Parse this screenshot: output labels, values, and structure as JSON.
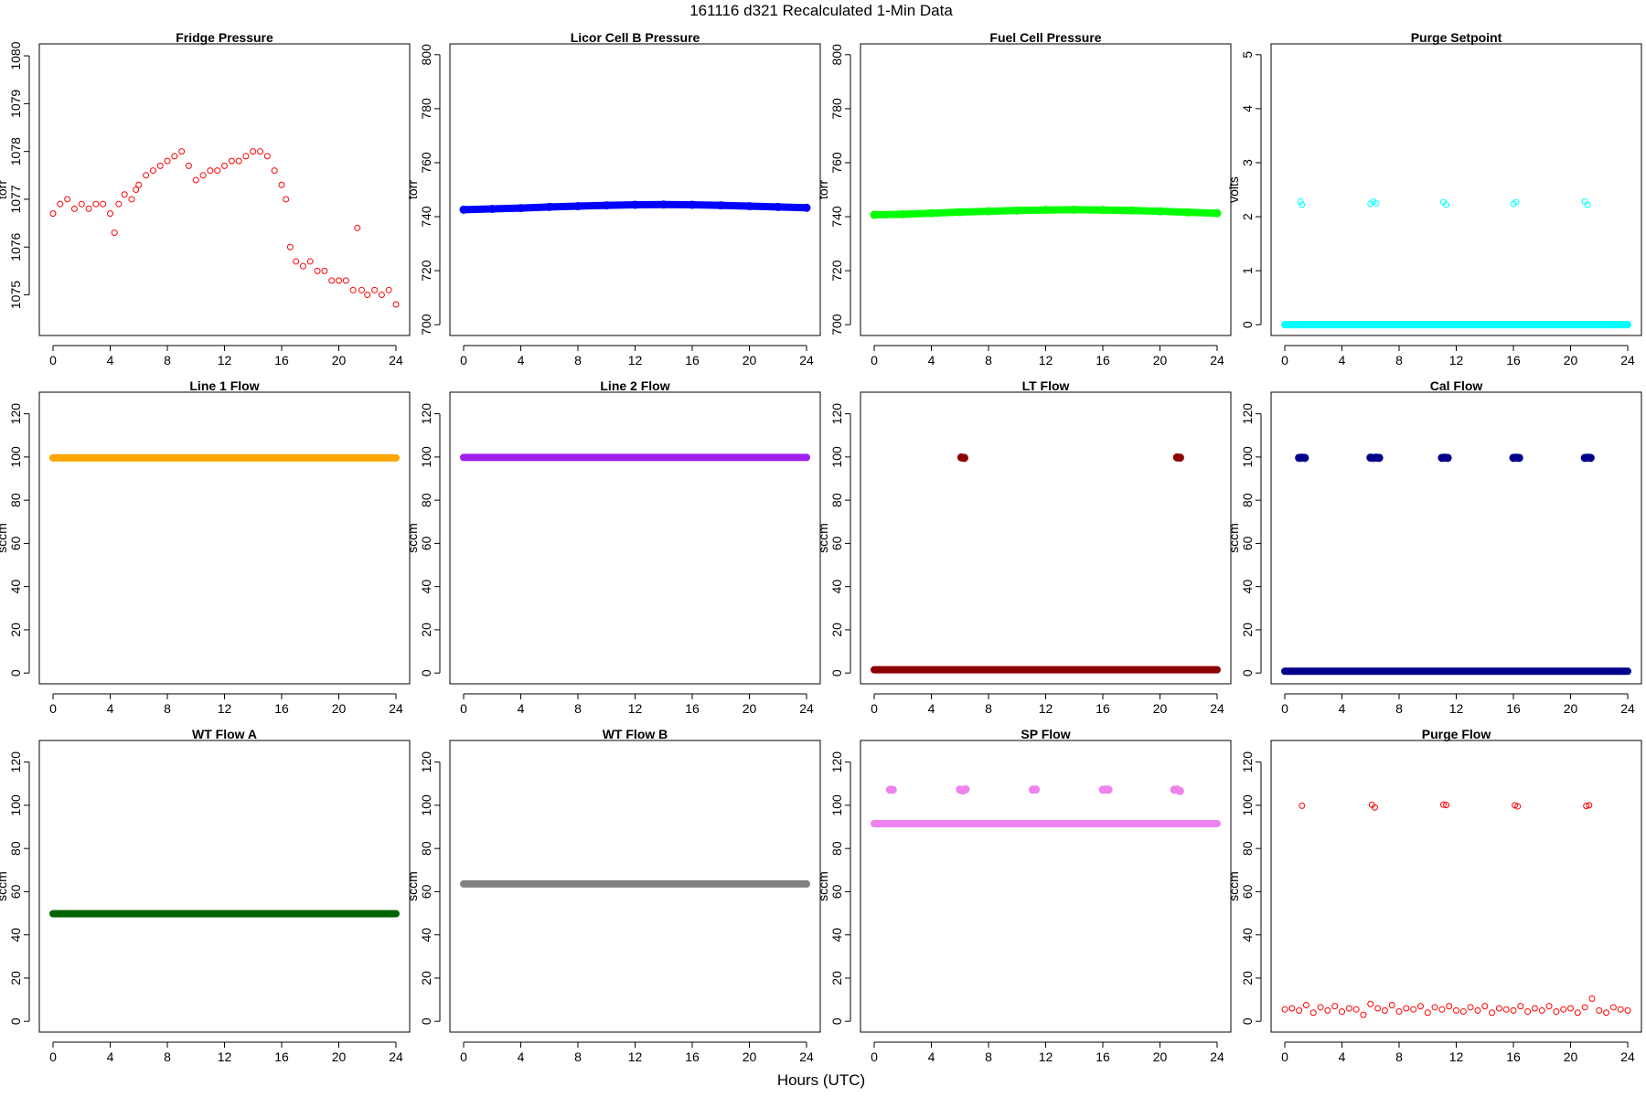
{
  "figure": {
    "title": "161116   d321   Recalculated 1-Min Data",
    "xlabel": "Hours (UTC)"
  },
  "chart_data": [
    {
      "type": "scatter",
      "title": "Fridge Pressure",
      "ylabel": "torr",
      "color": "#ff0000",
      "marker": "open-circle",
      "xlim": [
        -0.96,
        24.96
      ],
      "ylim": [
        1074.15,
        1080.25
      ],
      "xticks": [
        0,
        4,
        8,
        12,
        16,
        20,
        24
      ],
      "yticks": [
        1075,
        1076,
        1077,
        1078,
        1079,
        1080
      ],
      "x": [
        0.0,
        0.5,
        1.0,
        1.5,
        2.0,
        2.5,
        3.0,
        3.5,
        4.0,
        4.3,
        4.6,
        5.0,
        5.5,
        5.8,
        6.0,
        6.5,
        7.0,
        7.5,
        8.0,
        8.5,
        9.0,
        9.5,
        10.0,
        10.5,
        11.0,
        11.5,
        12.0,
        12.5,
        13.0,
        13.5,
        14.0,
        14.5,
        15.0,
        15.5,
        16.0,
        16.3,
        16.6,
        17.0,
        17.5,
        18.0,
        18.5,
        19.0,
        19.5,
        20.0,
        20.5,
        21.0,
        21.3,
        21.6,
        22.0,
        22.5,
        23.0,
        23.5,
        24.0
      ],
      "y": [
        1076.7,
        1076.9,
        1077.0,
        1076.8,
        1076.9,
        1076.8,
        1076.9,
        1076.9,
        1076.7,
        1076.3,
        1076.9,
        1077.1,
        1077.0,
        1077.2,
        1077.3,
        1077.5,
        1077.6,
        1077.7,
        1077.8,
        1077.9,
        1078.0,
        1077.7,
        1077.4,
        1077.5,
        1077.6,
        1077.6,
        1077.7,
        1077.8,
        1077.8,
        1077.9,
        1078.0,
        1078.0,
        1077.9,
        1077.6,
        1077.3,
        1077.0,
        1076.0,
        1075.7,
        1075.6,
        1075.7,
        1075.5,
        1075.5,
        1075.3,
        1075.3,
        1075.3,
        1075.1,
        1076.4,
        1075.1,
        1075.0,
        1075.1,
        1075.0,
        1075.1,
        1074.8
      ]
    },
    {
      "type": "scatter",
      "title": "Licor Cell B Pressure",
      "ylabel": "torr",
      "color": "#0000ff",
      "marker": "filled-circle",
      "xlim": [
        -0.96,
        24.96
      ],
      "ylim": [
        696,
        804
      ],
      "xticks": [
        0,
        4,
        8,
        12,
        16,
        20,
        24
      ],
      "yticks": [
        700,
        720,
        740,
        760,
        780,
        800
      ],
      "x": [
        0,
        2,
        4,
        6,
        8,
        10,
        12,
        14,
        16,
        18,
        20,
        22,
        24
      ],
      "y": [
        742.6,
        742.9,
        743.2,
        743.6,
        743.9,
        744.2,
        744.4,
        744.5,
        744.4,
        744.2,
        743.9,
        743.6,
        743.3
      ]
    },
    {
      "type": "scatter",
      "title": "Fuel Cell Pressure",
      "ylabel": "torr",
      "color": "#00ff00",
      "marker": "filled-circle",
      "xlim": [
        -0.96,
        24.96
      ],
      "ylim": [
        696,
        804
      ],
      "xticks": [
        0,
        4,
        8,
        12,
        16,
        20,
        24
      ],
      "yticks": [
        700,
        720,
        740,
        760,
        780,
        800
      ],
      "x": [
        0,
        2,
        4,
        6,
        8,
        10,
        12,
        14,
        16,
        18,
        20,
        22,
        24
      ],
      "y": [
        740.7,
        740.9,
        741.3,
        741.7,
        742.0,
        742.3,
        742.5,
        742.6,
        742.5,
        742.3,
        742.0,
        741.6,
        741.3
      ]
    },
    {
      "type": "scatter",
      "title": "Purge Setpoint",
      "ylabel": "volts",
      "color": "#00ffff",
      "marker": "open-circle",
      "xlim": [
        -0.96,
        24.96
      ],
      "ylim": [
        -0.2,
        5.2
      ],
      "xticks": [
        0,
        4,
        8,
        12,
        16,
        20,
        24
      ],
      "yticks": [
        0,
        1,
        2,
        3,
        4,
        5
      ],
      "baseline": {
        "value": 0,
        "x_start": 0,
        "x_end": 24
      },
      "x": [
        1.1,
        1.2,
        6.0,
        6.2,
        6.4,
        11.1,
        11.3,
        16.0,
        16.2,
        21.0,
        21.2
      ],
      "y": [
        2.28,
        2.22,
        2.24,
        2.28,
        2.25,
        2.27,
        2.22,
        2.24,
        2.27,
        2.28,
        2.22
      ]
    },
    {
      "type": "scatter",
      "title": "Line 1 Flow",
      "ylabel": "sccm",
      "color": "#ffa500",
      "marker": "filled-circle",
      "xlim": [
        -0.96,
        24.96
      ],
      "ylim": [
        -5,
        130
      ],
      "xticks": [
        0,
        4,
        8,
        12,
        16,
        20,
        24
      ],
      "yticks": [
        0,
        20,
        40,
        60,
        80,
        100,
        120
      ],
      "baseline": {
        "value": 99.6,
        "x_start": 0,
        "x_end": 24
      },
      "x": [],
      "y": []
    },
    {
      "type": "scatter",
      "title": "Line 2 Flow",
      "ylabel": "sccm",
      "color": "#a020f0",
      "marker": "filled-circle",
      "xlim": [
        -0.96,
        24.96
      ],
      "ylim": [
        -5,
        130
      ],
      "xticks": [
        0,
        4,
        8,
        12,
        16,
        20,
        24
      ],
      "yticks": [
        0,
        20,
        40,
        60,
        80,
        100,
        120
      ],
      "baseline": {
        "value": 99.8,
        "x_start": 0,
        "x_end": 24
      },
      "x": [],
      "y": []
    },
    {
      "type": "scatter",
      "title": "LT Flow",
      "ylabel": "sccm",
      "color": "#8b0000",
      "marker": "filled-circle",
      "xlim": [
        -0.96,
        24.96
      ],
      "ylim": [
        -5,
        130
      ],
      "xticks": [
        0,
        4,
        8,
        12,
        16,
        20,
        24
      ],
      "yticks": [
        0,
        20,
        40,
        60,
        80,
        100,
        120
      ],
      "baseline": {
        "value": 1.5,
        "x_start": 0,
        "x_end": 24
      },
      "x": [
        6.1,
        6.3,
        21.2,
        21.4
      ],
      "y": [
        99.8,
        99.6,
        99.8,
        99.7
      ]
    },
    {
      "type": "scatter",
      "title": "Cal Flow",
      "ylabel": "sccm",
      "color": "#00008b",
      "marker": "filled-circle",
      "xlim": [
        -0.96,
        24.96
      ],
      "ylim": [
        -5,
        130
      ],
      "xticks": [
        0,
        4,
        8,
        12,
        16,
        20,
        24
      ],
      "yticks": [
        0,
        20,
        40,
        60,
        80,
        100,
        120
      ],
      "baseline": {
        "value": 0.8,
        "x_start": 0,
        "x_end": 24
      },
      "x": [
        1.0,
        1.2,
        1.4,
        6.0,
        6.2,
        6.4,
        6.6,
        11.0,
        11.2,
        11.4,
        16.0,
        16.2,
        16.4,
        21.0,
        21.2,
        21.4
      ],
      "y": [
        99.6,
        99.7,
        99.6,
        99.7,
        99.6,
        99.7,
        99.6,
        99.6,
        99.7,
        99.6,
        99.6,
        99.7,
        99.6,
        99.6,
        99.7,
        99.6
      ]
    },
    {
      "type": "scatter",
      "title": "WT Flow A",
      "ylabel": "sccm",
      "color": "#006400",
      "marker": "filled-circle",
      "xlim": [
        -0.96,
        24.96
      ],
      "ylim": [
        -5,
        130
      ],
      "xticks": [
        0,
        4,
        8,
        12,
        16,
        20,
        24
      ],
      "yticks": [
        0,
        20,
        40,
        60,
        80,
        100,
        120
      ],
      "baseline": {
        "value": 49.8,
        "x_start": 0,
        "x_end": 24
      },
      "x": [],
      "y": []
    },
    {
      "type": "scatter",
      "title": "WT Flow B",
      "ylabel": "sccm",
      "color": "#808080",
      "marker": "filled-circle",
      "xlim": [
        -0.96,
        24.96
      ],
      "ylim": [
        -5,
        130
      ],
      "xticks": [
        0,
        4,
        8,
        12,
        16,
        20,
        24
      ],
      "yticks": [
        0,
        20,
        40,
        60,
        80,
        100,
        120
      ],
      "baseline": {
        "value": 63.6,
        "x_start": 0,
        "x_end": 24
      },
      "x": [],
      "y": []
    },
    {
      "type": "scatter",
      "title": "SP Flow",
      "ylabel": "sccm",
      "color": "#ee82ee",
      "marker": "filled-circle",
      "xlim": [
        -0.96,
        24.96
      ],
      "ylim": [
        -5,
        130
      ],
      "xticks": [
        0,
        4,
        8,
        12,
        16,
        20,
        24
      ],
      "yticks": [
        0,
        20,
        40,
        60,
        80,
        100,
        120
      ],
      "baseline": {
        "value": 91.5,
        "x_start": 0,
        "x_end": 24
      },
      "x": [
        1.1,
        1.3,
        6.0,
        6.2,
        6.4,
        11.1,
        11.3,
        16.0,
        16.2,
        16.4,
        21.0,
        21.2,
        21.4
      ],
      "y": [
        107.2,
        107.2,
        107.3,
        106.8,
        107.4,
        107.2,
        107.3,
        107.2,
        107.3,
        107.2,
        107.2,
        107.3,
        106.6
      ]
    },
    {
      "type": "scatter",
      "title": "Purge Flow",
      "ylabel": "sccm",
      "color": "#ff0000",
      "marker": "open-circle",
      "xlim": [
        -0.96,
        24.96
      ],
      "ylim": [
        -5,
        130
      ],
      "xticks": [
        0,
        4,
        8,
        12,
        16,
        20,
        24
      ],
      "yticks": [
        0,
        20,
        40,
        60,
        80,
        100,
        120
      ],
      "x": [
        0.0,
        0.5,
        1.0,
        1.2,
        1.5,
        2.0,
        2.5,
        3.0,
        3.5,
        4.0,
        4.5,
        5.0,
        5.5,
        6.0,
        6.1,
        6.3,
        6.5,
        7.0,
        7.5,
        8.0,
        8.5,
        9.0,
        9.5,
        10.0,
        10.5,
        11.0,
        11.1,
        11.3,
        11.5,
        12.0,
        12.5,
        13.0,
        13.5,
        14.0,
        14.5,
        15.0,
        15.5,
        16.0,
        16.1,
        16.3,
        16.5,
        17.0,
        17.5,
        18.0,
        18.5,
        19.0,
        19.5,
        20.0,
        20.5,
        21.0,
        21.1,
        21.3,
        21.5,
        22.0,
        22.5,
        23.0,
        23.5,
        24.0
      ],
      "y": [
        5.5,
        6.0,
        5.0,
        99.8,
        7.5,
        4.0,
        6.5,
        5.0,
        7.0,
        4.5,
        6.0,
        5.5,
        3.0,
        8.0,
        100.2,
        99.0,
        6.0,
        5.0,
        7.5,
        4.5,
        6.0,
        5.5,
        7.0,
        4.0,
        6.5,
        5.5,
        100.3,
        100.1,
        7.0,
        5.0,
        4.5,
        6.5,
        5.0,
        7.0,
        4.0,
        6.0,
        5.5,
        5.0,
        100.0,
        99.5,
        7.0,
        4.5,
        6.0,
        5.0,
        7.0,
        4.5,
        5.5,
        6.0,
        4.0,
        6.5,
        99.7,
        100.0,
        10.5,
        5.0,
        4.0,
        6.5,
        5.5,
        5.0
      ]
    }
  ]
}
